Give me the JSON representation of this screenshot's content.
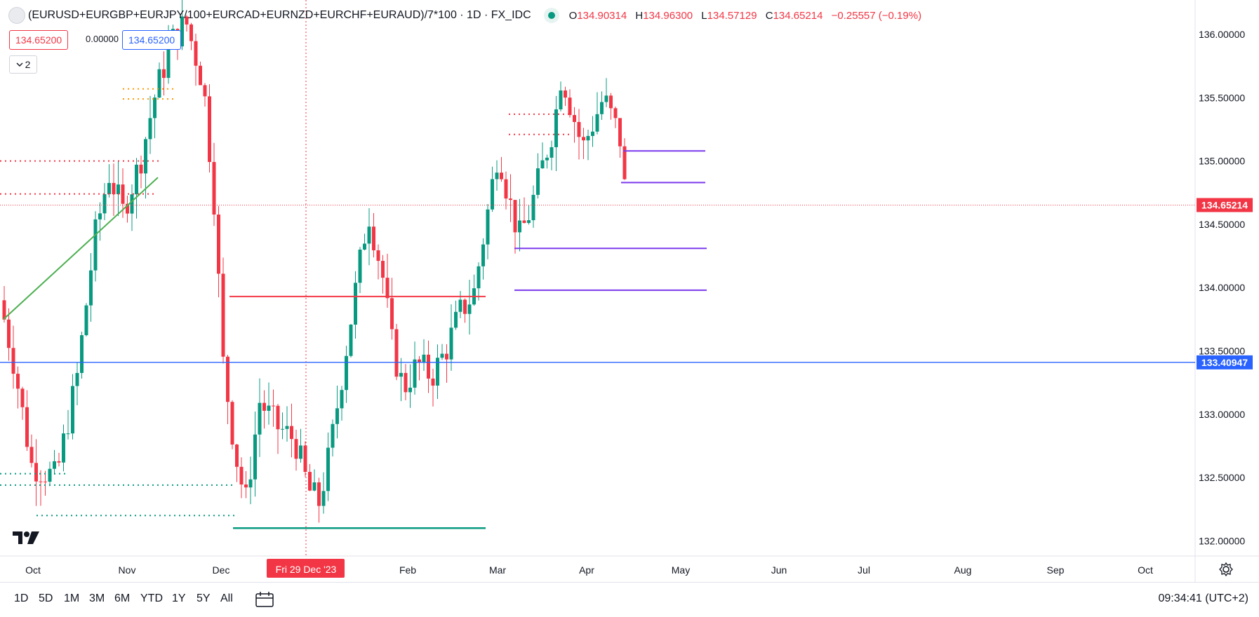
{
  "header": {
    "symbol": "(EURUSD+EURGBP+EURJPY/100+EURCAD+EURNZD+EURCHF+EURAUD)/7*100 · 1D · FX_IDC",
    "ohlc": {
      "open_label": "O",
      "open": "134.90314",
      "high_label": "H",
      "high": "134.96300",
      "low_label": "L",
      "low": "134.57129",
      "close_label": "C",
      "close": "134.65214",
      "change": "−0.25557 (−0.19%)"
    },
    "price_tag_red": "134.65200",
    "price_tag_zero": "0.00000",
    "price_tag_blue": "134.65200",
    "collapse_count": "2"
  },
  "bottom_bar": {
    "ranges": [
      "1D",
      "5D",
      "1M",
      "3M",
      "6M",
      "YTD",
      "1Y",
      "5Y",
      "All"
    ],
    "clock": "09:34:41 (UTC+2)"
  },
  "colors": {
    "up": "#089981",
    "down": "#f23645",
    "blue_line": "#2962ff",
    "purple": "#7c3aed",
    "trend": "#4caf50",
    "orange": "#ff9800",
    "grid": "#f0f3fa"
  },
  "chart_data": {
    "type": "candlestick",
    "title": "(EURUSD+EURGBP+EURJPY/100+EURCAD+EURNZD+EURCHF+EURAUD)/7*100",
    "timeframe": "1D",
    "ylim": [
      131.88,
      136.15
    ],
    "y_ticks": [
      "132.00000",
      "132.50000",
      "133.00000",
      "133.50000",
      "134.00000",
      "134.50000",
      "135.00000",
      "135.50000",
      "136.00000"
    ],
    "x_ticks": [
      "Oct",
      "Nov",
      "Dec",
      "Fri 29 Dec '23",
      "Feb",
      "Mar",
      "Apr",
      "May",
      "Jun",
      "Jul",
      "Aug",
      "Sep",
      "Oct"
    ],
    "crosshair_label": "Fri 29 Dec '23",
    "last_price_label": "134.65214",
    "blue_line_label": "133.40947",
    "ohlc_last": [
      134.90314,
      134.963,
      134.57129,
      134.65214
    ]
  }
}
